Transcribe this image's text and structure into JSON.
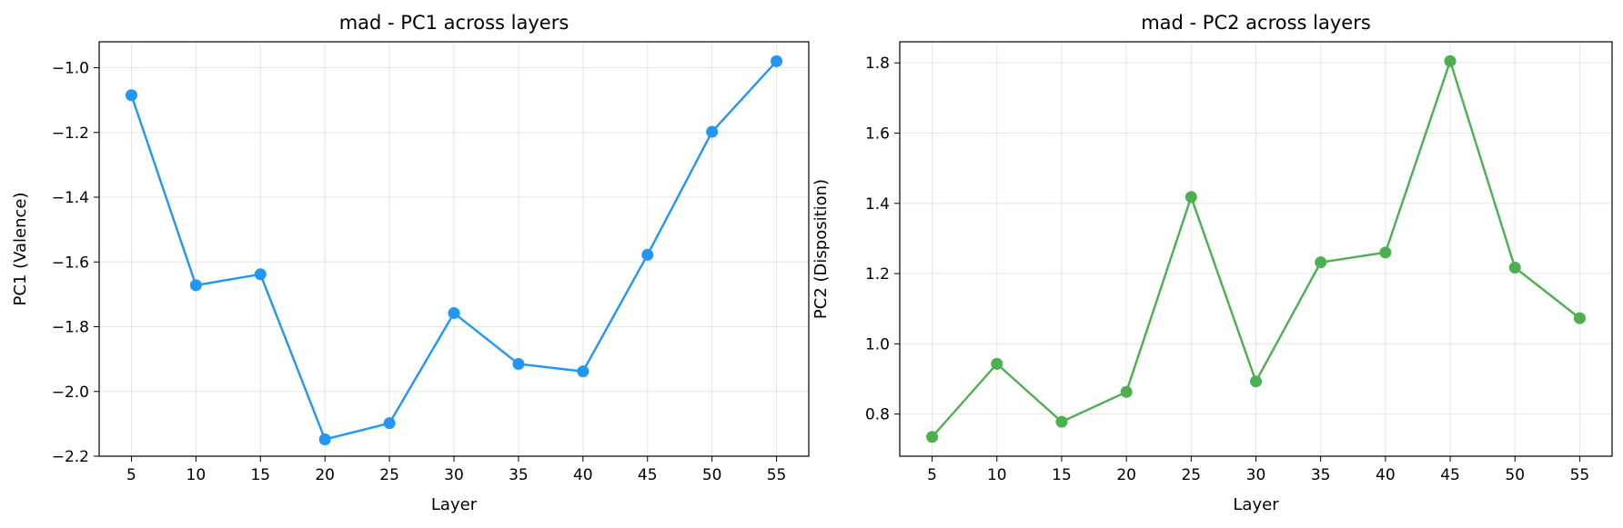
{
  "chart_data": [
    {
      "type": "line",
      "title": "mad - PC1 across layers",
      "xlabel": "Layer",
      "ylabel": "PC1 (Valence)",
      "x": [
        5,
        10,
        15,
        20,
        25,
        30,
        35,
        40,
        45,
        50,
        55
      ],
      "xticks": [
        "5",
        "10",
        "15",
        "20",
        "25",
        "30",
        "35",
        "40",
        "45",
        "50",
        "55"
      ],
      "yticks": [
        -2.2,
        -2.0,
        -1.8,
        -1.6,
        -1.4,
        -1.2,
        -1.0
      ],
      "ytick_labels": [
        "−2.2",
        "−2.0",
        "−1.8",
        "−1.6",
        "−1.4",
        "−1.2",
        "−1.0"
      ],
      "ylim": [
        -2.2,
        -0.92
      ],
      "xlim": [
        2.5,
        57.5
      ],
      "grid": true,
      "series": [
        {
          "color": "#2196F3",
          "values": [
            -1.085,
            -1.672,
            -1.638,
            -2.148,
            -2.098,
            -1.758,
            -1.915,
            -1.938,
            -1.578,
            -1.198,
            -0.98
          ]
        }
      ]
    },
    {
      "type": "line",
      "title": "mad - PC2 across layers",
      "xlabel": "Layer",
      "ylabel": "PC2 (Disposition)",
      "x": [
        5,
        10,
        15,
        20,
        25,
        30,
        35,
        40,
        45,
        50,
        55
      ],
      "xticks": [
        "5",
        "10",
        "15",
        "20",
        "25",
        "30",
        "35",
        "40",
        "45",
        "50",
        "55"
      ],
      "yticks": [
        0.8,
        1.0,
        1.2,
        1.4,
        1.6,
        1.8
      ],
      "ytick_labels": [
        "0.8",
        "1.0",
        "1.2",
        "1.4",
        "1.6",
        "1.8"
      ],
      "ylim": [
        0.68,
        1.86
      ],
      "xlim": [
        2.5,
        57.5
      ],
      "grid": true,
      "series": [
        {
          "color": "#4CAF50",
          "values": [
            0.735,
            0.943,
            0.778,
            0.863,
            1.418,
            0.893,
            1.232,
            1.26,
            1.805,
            1.217,
            1.073
          ]
        }
      ]
    }
  ]
}
